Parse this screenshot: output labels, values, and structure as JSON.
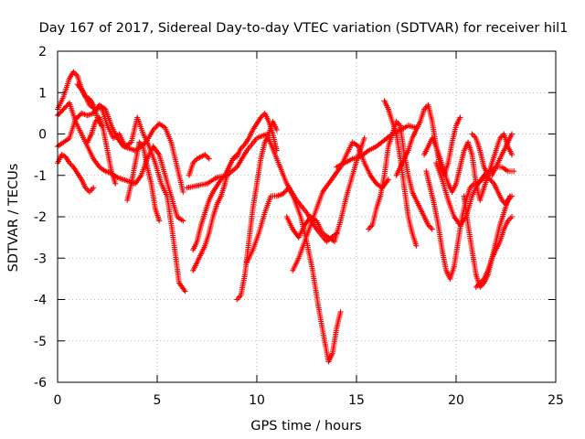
{
  "chart_data": {
    "type": "scatter",
    "title": "Day 167 of 2017, Sidereal Day-to-day VTEC variation (SDTVAR) for receiver hil1",
    "xlabel": "GPS time / hours",
    "ylabel": "SDTVAR / TECUs",
    "xlim": [
      0,
      25
    ],
    "ylim": [
      -6,
      2
    ],
    "x_ticks": [
      0,
      5,
      10,
      15,
      20,
      25
    ],
    "y_ticks": [
      -6,
      -5,
      -4,
      -3,
      -2,
      -1,
      0,
      1,
      2
    ],
    "x_tick_labels": [
      "0",
      "5",
      "10",
      "15",
      "20",
      "25"
    ],
    "y_tick_labels": [
      "-6",
      "-5",
      "-4",
      "-3",
      "-2",
      "-1",
      "0",
      "1",
      "2"
    ],
    "grid": true,
    "marker": "plus",
    "marker_color": "#ff0000",
    "series": [
      {
        "x": [
          0.0,
          0.3,
          0.6,
          0.8,
          1.0,
          1.2,
          1.4,
          1.6,
          1.8,
          2.0,
          2.2
        ],
        "y": [
          0.6,
          0.9,
          1.35,
          1.5,
          1.4,
          1.1,
          0.9,
          0.85,
          0.7,
          0.4,
          0.2
        ]
      },
      {
        "x": [
          0.0,
          0.2,
          0.4,
          0.6,
          0.8,
          1.0,
          1.2,
          1.4,
          1.6,
          1.8
        ],
        "y": [
          -0.7,
          -0.5,
          -0.55,
          -0.7,
          -0.8,
          -0.95,
          -1.1,
          -1.3,
          -1.4,
          -1.3
        ]
      },
      {
        "x": [
          0.0,
          0.3,
          0.6,
          0.9,
          1.2,
          1.5,
          1.8,
          2.1,
          2.4,
          2.7,
          3.0,
          3.3,
          3.6,
          3.9,
          4.2,
          4.5,
          4.8,
          5.1,
          5.4,
          5.7,
          6.0,
          6.3
        ],
        "y": [
          0.45,
          0.6,
          0.75,
          0.3,
          0.0,
          -0.3,
          -0.6,
          -0.8,
          -0.9,
          -0.95,
          -1.05,
          -1.1,
          -1.15,
          -1.2,
          -1.0,
          -0.6,
          -0.3,
          -0.5,
          -1.0,
          -1.5,
          -2.0,
          -2.1
        ]
      },
      {
        "x": [
          0.0,
          0.3,
          0.6,
          0.9,
          1.2,
          1.5,
          1.8,
          2.1,
          2.4,
          2.7,
          3.0,
          3.3,
          3.6,
          3.9,
          4.2,
          4.5,
          4.8,
          5.1,
          5.4,
          5.7,
          6.0,
          6.3
        ],
        "y": [
          -0.3,
          -0.2,
          -0.1,
          0.35,
          0.5,
          0.45,
          0.5,
          0.7,
          0.6,
          0.2,
          -0.1,
          -0.3,
          -0.35,
          -0.4,
          -0.3,
          -0.15,
          0.1,
          0.25,
          0.15,
          -0.2,
          -0.8,
          -1.4
        ]
      },
      {
        "x": [
          1.0,
          1.3,
          1.6,
          1.9,
          2.2,
          2.5,
          2.8,
          3.1,
          3.4,
          3.7,
          4.0,
          4.3,
          4.6,
          4.9,
          5.2,
          5.5,
          5.8,
          6.1,
          6.4
        ],
        "y": [
          1.2,
          1.0,
          0.7,
          0.6,
          0.65,
          0.2,
          -0.1,
          0.0,
          -0.3,
          -0.2,
          0.4,
          0.0,
          -0.3,
          -0.7,
          -1.2,
          -1.5,
          -2.5,
          -3.6,
          -3.8
        ]
      },
      {
        "x": [
          1.5,
          1.7,
          1.9,
          2.1,
          2.3,
          2.5,
          2.7,
          2.9
        ],
        "y": [
          -0.2,
          0.0,
          0.3,
          0.4,
          0.1,
          -0.4,
          -0.9,
          -1.2
        ]
      },
      {
        "x": [
          3.5,
          3.7,
          3.9,
          4.1,
          4.3,
          4.5,
          4.7,
          4.9,
          5.1
        ],
        "y": [
          -1.6,
          -1.2,
          -0.7,
          -0.2,
          -0.3,
          -0.8,
          -1.2,
          -1.8,
          -2.1
        ]
      },
      {
        "x": [
          6.6,
          6.8,
          7.0,
          7.2,
          7.4,
          7.6
        ],
        "y": [
          -1.0,
          -0.7,
          -0.6,
          -0.55,
          -0.5,
          -0.6
        ]
      },
      {
        "x": [
          6.8,
          7.0,
          7.2,
          7.4,
          7.6,
          7.8,
          8.0,
          8.2,
          8.4,
          8.6,
          8.8,
          9.0,
          9.2,
          9.4,
          9.6,
          9.8,
          10.0,
          10.2,
          10.4,
          10.6,
          10.8,
          11.0
        ],
        "y": [
          -2.8,
          -2.6,
          -2.2,
          -1.9,
          -1.6,
          -1.4,
          -1.25,
          -1.1,
          -1.0,
          -0.8,
          -0.6,
          -0.55,
          -0.35,
          -0.25,
          -0.1,
          0.1,
          0.25,
          0.4,
          0.5,
          0.3,
          0.0,
          -0.4
        ]
      },
      {
        "x": [
          6.8,
          7.0,
          7.2,
          7.4,
          7.6,
          7.8,
          8.0,
          8.2,
          8.4,
          8.6,
          8.8,
          9.0
        ],
        "y": [
          -3.3,
          -3.1,
          -2.9,
          -2.7,
          -2.4,
          -2.0,
          -1.7,
          -1.5,
          -1.2,
          -0.8,
          -0.6,
          -0.5
        ]
      },
      {
        "x": [
          6.5,
          7.0,
          7.5,
          8.0,
          8.5,
          9.0,
          9.5,
          10.0,
          10.5,
          11.0,
          11.5,
          12.0,
          12.5,
          13.0,
          13.5,
          14.0
        ],
        "y": [
          -1.3,
          -1.25,
          -1.2,
          -1.05,
          -1.0,
          -0.8,
          -0.4,
          -0.1,
          0.0,
          -0.6,
          -1.2,
          -1.6,
          -1.9,
          -2.3,
          -2.6,
          -2.4
        ]
      },
      {
        "x": [
          9.0,
          9.2,
          9.4,
          9.6,
          9.8,
          10.0,
          10.2,
          10.4,
          10.6,
          10.8,
          11.0
        ],
        "y": [
          -4.0,
          -3.9,
          -3.4,
          -2.6,
          -1.8,
          -1.2,
          -0.6,
          -0.2,
          0.0,
          0.3,
          0.1
        ]
      },
      {
        "x": [
          9.5,
          9.8,
          10.1,
          10.4,
          10.7,
          11.0,
          11.3,
          11.6,
          11.9,
          12.2,
          12.5,
          12.8,
          13.1,
          13.4,
          13.6,
          13.8,
          14.0,
          14.2
        ],
        "y": [
          -3.1,
          -2.8,
          -2.4,
          -1.9,
          -1.5,
          -1.5,
          -1.45,
          -1.3,
          -1.6,
          -2.0,
          -2.6,
          -3.3,
          -4.2,
          -5.0,
          -5.5,
          -5.3,
          -4.7,
          -4.3
        ]
      },
      {
        "x": [
          11.5,
          11.8,
          12.1,
          12.4,
          12.7,
          13.0,
          13.3,
          13.6,
          13.9,
          14.2,
          14.5,
          14.8,
          15.1,
          15.4
        ],
        "y": [
          -2.0,
          -2.3,
          -2.5,
          -2.2,
          -2.0,
          -2.1,
          -2.4,
          -2.5,
          -2.6,
          -2.1,
          -1.5,
          -1.0,
          -0.5,
          -0.1
        ]
      },
      {
        "x": [
          11.8,
          12.1,
          12.4,
          12.7,
          13.0,
          13.3,
          13.6,
          13.9,
          14.2,
          14.5,
          14.8,
          15.1,
          15.4,
          15.7,
          16.0,
          16.3,
          16.6
        ],
        "y": [
          -3.3,
          -3.0,
          -2.6,
          -2.2,
          -1.8,
          -1.4,
          -1.2,
          -1.0,
          -0.8,
          -0.5,
          -0.2,
          -0.3,
          -0.7,
          -1.0,
          -1.2,
          -1.3,
          -1.1
        ]
      },
      {
        "x": [
          14.0,
          14.4,
          14.8,
          15.2,
          15.6,
          16.0,
          16.4,
          16.8,
          17.2,
          17.6,
          18.0
        ],
        "y": [
          -0.8,
          -0.7,
          -0.6,
          -0.55,
          -0.4,
          -0.3,
          -0.15,
          0.0,
          0.1,
          0.2,
          0.15
        ]
      },
      {
        "x": [
          15.6,
          15.8,
          16.0,
          16.2,
          16.4,
          16.6,
          16.8,
          17.0,
          17.2,
          17.4,
          17.6,
          17.8,
          18.0,
          18.2,
          18.4,
          18.6,
          18.8
        ],
        "y": [
          -2.3,
          -2.2,
          -1.8,
          -1.5,
          -1.0,
          -0.3,
          0.0,
          0.3,
          0.2,
          -0.5,
          -1.0,
          -1.4,
          -1.6,
          -1.8,
          -2.0,
          -2.2,
          -2.3
        ]
      },
      {
        "x": [
          16.4,
          16.6,
          16.8,
          17.0,
          17.2,
          17.4,
          17.6,
          17.8,
          18.0
        ],
        "y": [
          0.8,
          0.6,
          0.3,
          0.0,
          -0.6,
          -1.3,
          -2.0,
          -2.4,
          -2.7
        ]
      },
      {
        "x": [
          17.0,
          17.2,
          17.4,
          17.6,
          17.8,
          18.0,
          18.2,
          18.4,
          18.6,
          18.8,
          19.0,
          19.2,
          19.4,
          19.6,
          19.8,
          20.0,
          20.2
        ],
        "y": [
          -1.0,
          -0.8,
          -0.6,
          -0.4,
          -0.1,
          0.1,
          0.3,
          0.6,
          0.7,
          0.3,
          -0.3,
          -0.8,
          -1.0,
          -0.7,
          -0.2,
          0.2,
          0.4
        ]
      },
      {
        "x": [
          18.4,
          18.6,
          18.8,
          19.0,
          19.2,
          19.4,
          19.6,
          19.8,
          20.0,
          20.2,
          20.4,
          20.6,
          20.8,
          21.0,
          21.2,
          21.4,
          21.6,
          21.8,
          22.0,
          22.2,
          22.4,
          22.6,
          22.8
        ],
        "y": [
          -0.5,
          -0.3,
          -0.1,
          -0.3,
          -0.6,
          -0.9,
          -1.2,
          -1.4,
          -1.2,
          -0.8,
          -0.4,
          -0.2,
          -0.5,
          -1.2,
          -1.6,
          -1.3,
          -1.0,
          -0.7,
          -0.4,
          -0.1,
          0.0,
          -0.3,
          -0.5
        ]
      },
      {
        "x": [
          18.5,
          18.7,
          18.9,
          19.1,
          19.3,
          19.5,
          19.7,
          19.9,
          20.1,
          20.3,
          20.5,
          20.7,
          20.9,
          21.1,
          21.3,
          21.5,
          21.7,
          21.9,
          22.1,
          22.3,
          22.5,
          22.7
        ],
        "y": [
          -0.9,
          -1.3,
          -1.7,
          -2.2,
          -2.8,
          -3.3,
          -3.5,
          -3.2,
          -2.6,
          -2.0,
          -1.6,
          -1.3,
          -1.2,
          -1.2,
          -1.1,
          -1.0,
          -1.1,
          -1.2,
          -1.4,
          -1.6,
          -1.7,
          -1.5
        ]
      },
      {
        "x": [
          19.0,
          19.3,
          19.6,
          19.9,
          20.2,
          20.5,
          20.8,
          21.1,
          21.4,
          21.7,
          22.0,
          22.3,
          22.6,
          22.9
        ],
        "y": [
          -0.7,
          -1.1,
          -1.6,
          -2.0,
          -2.2,
          -2.0,
          -1.5,
          -1.2,
          -1.0,
          -0.9,
          -0.8,
          -0.8,
          -0.9,
          -0.9
        ]
      },
      {
        "x": [
          20.4,
          20.6,
          20.8,
          21.0,
          21.2,
          21.4,
          21.6,
          21.8,
          22.0,
          22.2,
          22.4,
          22.6,
          22.8
        ],
        "y": [
          -1.5,
          -2.2,
          -2.8,
          -3.4,
          -3.7,
          -3.6,
          -3.4,
          -3.0,
          -2.6,
          -2.2,
          -1.9,
          -1.6,
          -1.5
        ]
      },
      {
        "x": [
          21.0,
          21.2,
          21.4,
          21.6,
          21.8,
          22.0,
          22.2,
          22.4,
          22.6,
          22.8
        ],
        "y": [
          -3.7,
          -3.6,
          -3.5,
          -3.3,
          -3.0,
          -2.8,
          -2.6,
          -2.3,
          -2.1,
          -2.0
        ]
      },
      {
        "x": [
          20.8,
          21.0,
          21.2,
          21.4,
          21.6,
          21.8,
          22.0,
          22.2,
          22.4,
          22.6,
          22.8
        ],
        "y": [
          0.0,
          -0.1,
          -0.4,
          -0.8,
          -1.0,
          -1.0,
          -0.8,
          -0.6,
          -0.4,
          -0.2,
          0.0
        ]
      }
    ]
  }
}
